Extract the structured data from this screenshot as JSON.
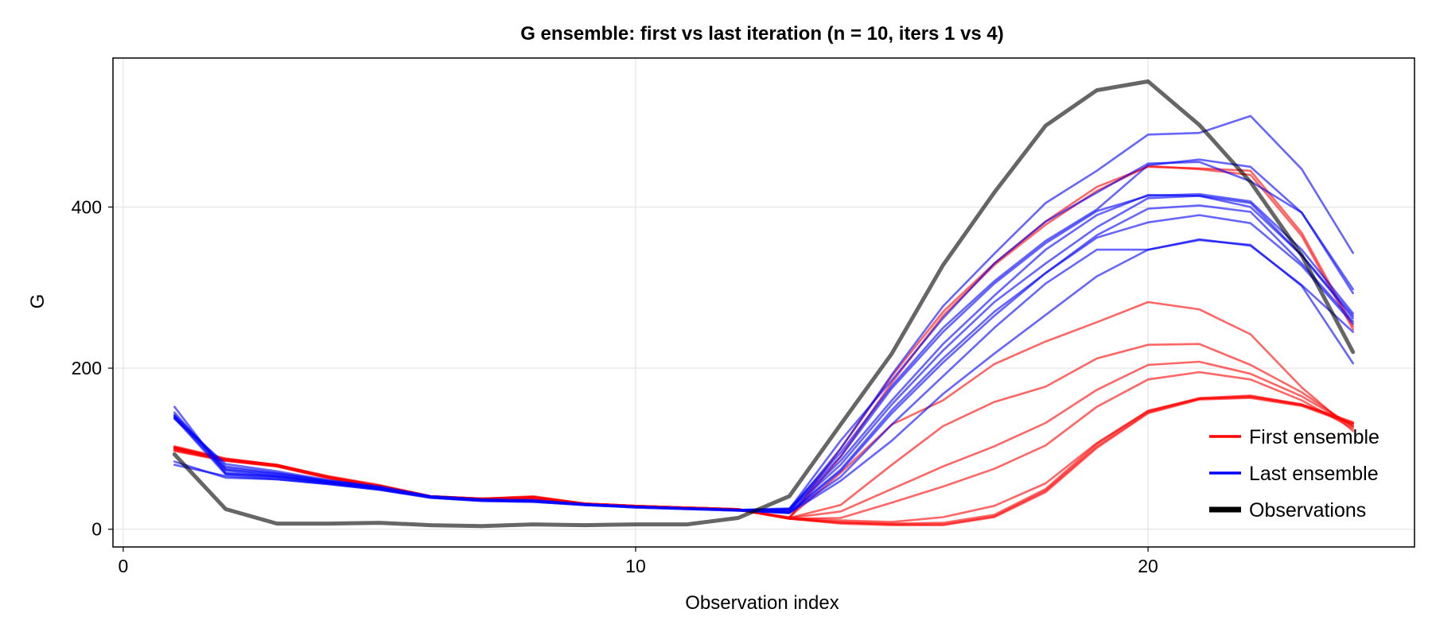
{
  "chart_data": {
    "type": "line",
    "title": "G ensemble: first vs last iteration (n = 10, iters 1 vs 4)",
    "xlabel": "Observation index",
    "ylabel": "G",
    "xlim": [
      -0.2,
      25.2
    ],
    "ylim": [
      -22,
      585
    ],
    "xticks": [
      0,
      10,
      20
    ],
    "xtick_labels": [
      "0",
      "10",
      "20"
    ],
    "yticks": [
      0,
      200,
      400
    ],
    "ytick_labels": [
      "0",
      "200",
      "400"
    ],
    "grid": true,
    "legend_position": "bottom-right",
    "legend": [
      {
        "label": "First ensemble",
        "color": "#ff0000"
      },
      {
        "label": "Last ensemble",
        "color": "#0000ff"
      },
      {
        "label": "Observations",
        "color": "#000000"
      }
    ],
    "x": [
      1,
      2,
      3,
      4,
      5,
      6,
      7,
      8,
      9,
      10,
      11,
      12,
      13,
      14,
      15,
      16,
      17,
      18,
      19,
      20,
      21,
      22,
      23,
      24
    ],
    "series": [
      {
        "group": "first",
        "values": [
          103,
          88,
          80,
          66,
          55,
          41,
          38,
          41,
          32,
          29,
          27,
          25,
          13,
          8,
          6,
          6,
          16,
          48,
          103,
          145,
          162,
          165,
          155,
          133
        ]
      },
      {
        "group": "first",
        "values": [
          99,
          86,
          79,
          64,
          53,
          40,
          37,
          39,
          31,
          28,
          26,
          24,
          13,
          7,
          5,
          5,
          15,
          46,
          101,
          144,
          161,
          163,
          153,
          130
        ]
      },
      {
        "group": "first",
        "values": [
          101,
          87,
          80,
          65,
          54,
          41,
          38,
          40,
          32,
          29,
          27,
          25,
          13,
          9,
          7,
          8,
          18,
          50,
          106,
          147,
          163,
          166,
          155,
          132
        ]
      },
      {
        "group": "first",
        "values": [
          97,
          85,
          78,
          63,
          52,
          40,
          37,
          38,
          31,
          28,
          26,
          24,
          14,
          11,
          9,
          15,
          29,
          57,
          107,
          147,
          162,
          164,
          154,
          131
        ]
      },
      {
        "group": "first",
        "values": [
          100,
          86,
          79,
          65,
          54,
          40,
          37,
          39,
          31,
          28,
          26,
          24,
          13,
          14,
          33,
          53,
          75,
          104,
          152,
          186,
          195,
          186,
          160,
          125
        ]
      },
      {
        "group": "first",
        "values": [
          98,
          85,
          78,
          64,
          53,
          40,
          37,
          39,
          31,
          28,
          26,
          24,
          14,
          22,
          50,
          78,
          103,
          132,
          173,
          204,
          208,
          193,
          165,
          128
        ]
      },
      {
        "group": "first",
        "values": [
          102,
          87,
          79,
          65,
          54,
          41,
          38,
          40,
          32,
          29,
          27,
          25,
          14,
          30,
          80,
          128,
          158,
          177,
          212,
          229,
          230,
          204,
          170,
          127
        ]
      },
      {
        "group": "first",
        "values": [
          100,
          86,
          79,
          64,
          53,
          40,
          37,
          39,
          31,
          28,
          26,
          24,
          15,
          70,
          130,
          160,
          205,
          233,
          257,
          282,
          273,
          242,
          176,
          122
        ]
      },
      {
        "group": "first",
        "values": [
          101,
          86,
          79,
          65,
          54,
          41,
          38,
          40,
          32,
          29,
          27,
          25,
          14,
          90,
          182,
          265,
          328,
          378,
          420,
          451,
          447,
          440,
          364,
          248
        ]
      },
      {
        "group": "first",
        "values": [
          102,
          87,
          80,
          65,
          54,
          41,
          38,
          40,
          32,
          29,
          27,
          25,
          14,
          100,
          190,
          270,
          330,
          382,
          425,
          450,
          448,
          445,
          368,
          252
        ]
      },
      {
        "group": "last",
        "values": [
          152,
          69,
          65,
          58,
          51,
          40,
          36,
          35,
          31,
          28,
          26,
          24,
          22,
          100,
          192,
          277,
          342,
          405,
          445,
          490,
          492,
          513,
          447,
          343
        ]
      },
      {
        "group": "last",
        "values": [
          145,
          73,
          66,
          58,
          51,
          40,
          36,
          35,
          31,
          28,
          26,
          24,
          24,
          85,
          160,
          230,
          290,
          347,
          390,
          415,
          414,
          400,
          340,
          265
        ]
      },
      {
        "group": "last",
        "values": [
          138,
          68,
          64,
          57,
          50,
          40,
          36,
          35,
          30,
          28,
          26,
          24,
          25,
          90,
          175,
          245,
          305,
          355,
          395,
          414,
          416,
          407,
          347,
          268
        ]
      },
      {
        "group": "last",
        "values": [
          142,
          78,
          70,
          60,
          52,
          41,
          37,
          36,
          31,
          28,
          26,
          24,
          23,
          80,
          155,
          222,
          282,
          330,
          375,
          411,
          414,
          405,
          340,
          262
        ]
      },
      {
        "group": "last",
        "values": [
          137,
          81,
          72,
          61,
          53,
          41,
          37,
          36,
          31,
          28,
          26,
          24,
          20,
          72,
          144,
          207,
          265,
          318,
          365,
          398,
          402,
          394,
          330,
          258
        ]
      },
      {
        "group": "last",
        "values": [
          139,
          74,
          68,
          59,
          51,
          40,
          36,
          35,
          31,
          28,
          26,
          24,
          26,
          95,
          178,
          250,
          308,
          358,
          397,
          452,
          459,
          450,
          393,
          298
        ]
      },
      {
        "group": "last",
        "values": [
          141,
          76,
          69,
          60,
          52,
          40,
          36,
          35,
          31,
          28,
          26,
          24,
          21,
          74,
          148,
          212,
          270,
          318,
          362,
          381,
          390,
          380,
          327,
          255
        ]
      },
      {
        "group": "last",
        "values": [
          84,
          64,
          62,
          56,
          49,
          39,
          35,
          34,
          30,
          27,
          25,
          23,
          21,
          65,
          130,
          190,
          250,
          305,
          347,
          347,
          360,
          352,
          303,
          245
        ]
      },
      {
        "group": "last",
        "values": [
          80,
          66,
          62,
          56,
          49,
          39,
          35,
          34,
          30,
          27,
          25,
          23,
          20,
          60,
          110,
          168,
          218,
          266,
          314,
          347,
          359,
          353,
          302,
          206
        ]
      },
      {
        "group": "last",
        "values": [
          140,
          70,
          66,
          58,
          50,
          40,
          36,
          35,
          31,
          28,
          26,
          24,
          25,
          110,
          185,
          262,
          330,
          382,
          418,
          454,
          456,
          432,
          393,
          293
        ]
      },
      {
        "group": "obs",
        "values": [
          93,
          25,
          7,
          7,
          8,
          5,
          4,
          6,
          5,
          6,
          6,
          14,
          41,
          130,
          218,
          328,
          418,
          501,
          545,
          556,
          502,
          431,
          340,
          220
        ]
      }
    ]
  }
}
